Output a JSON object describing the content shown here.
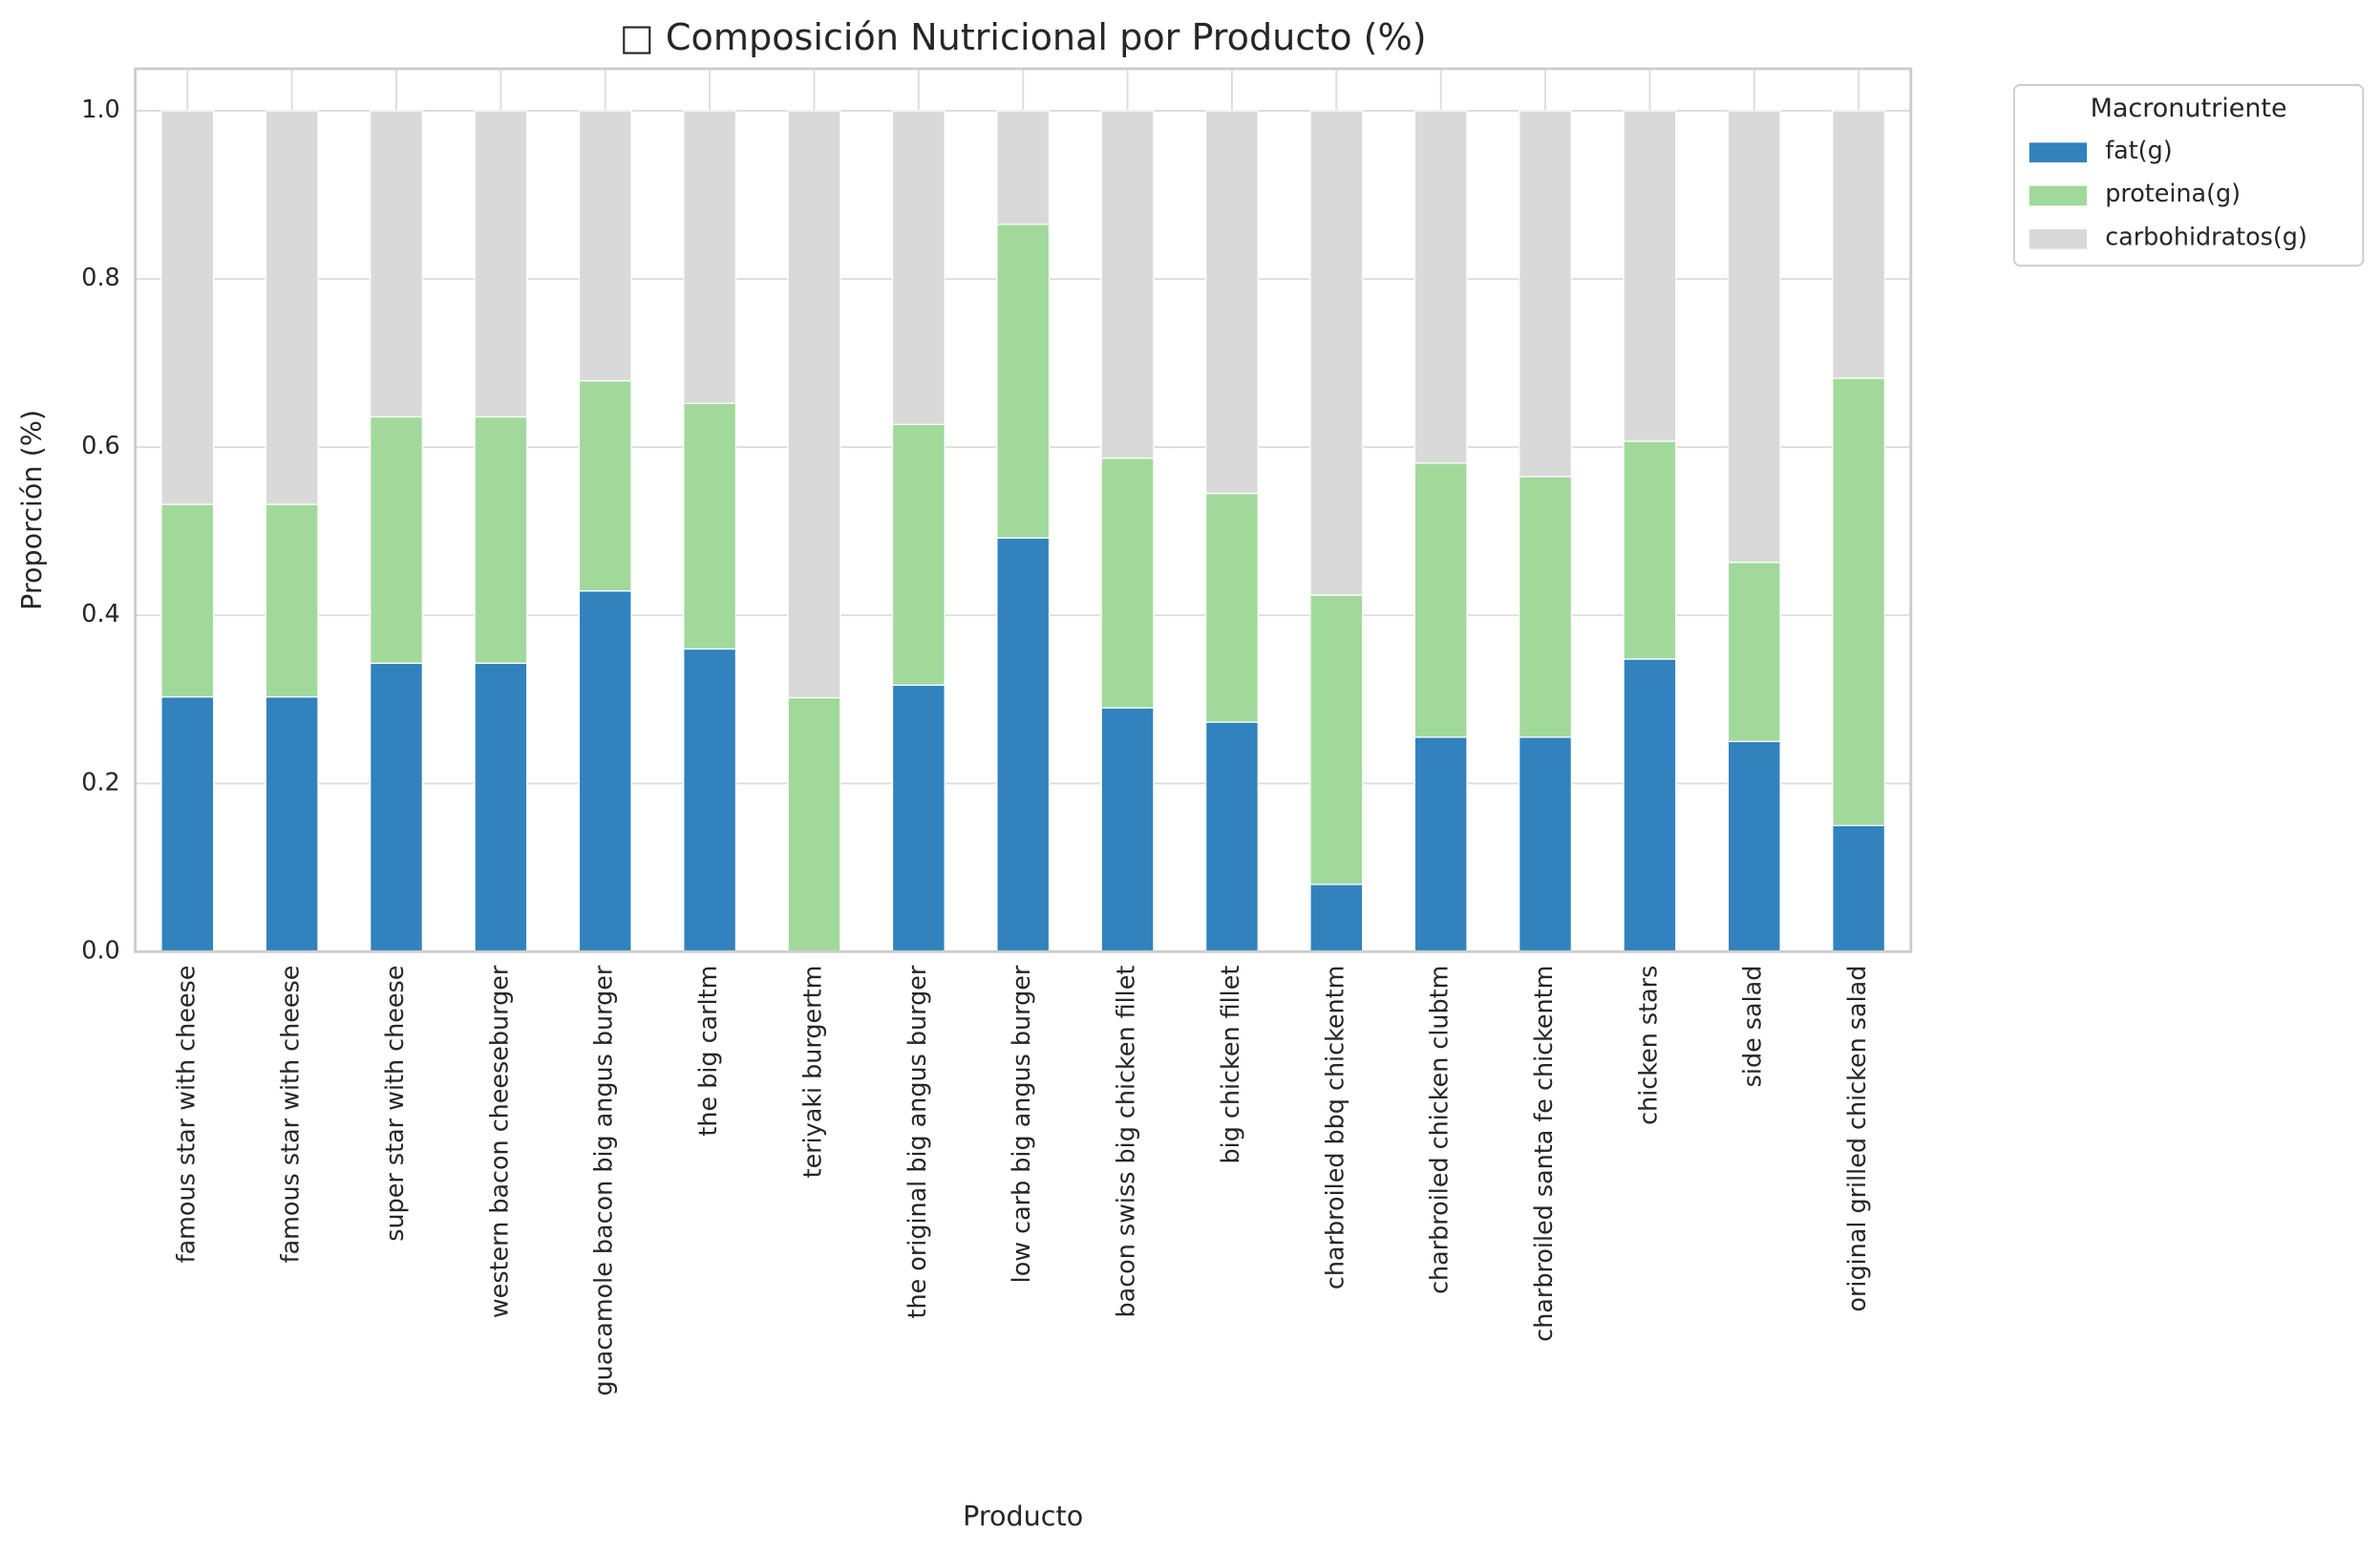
{
  "chart_data": {
    "type": "stacked_bar",
    "title": "□ Composición Nutricional por Producto (%)",
    "x_label": "Producto",
    "y_label": "Proporción (%)",
    "categories": [
      "famous star with cheese",
      "famous star with cheese",
      "super star with cheese",
      "western bacon cheeseburger",
      "guacamole bacon big angus burger",
      "the big carltm",
      "teriyaki burgertm",
      "the original big angus burger",
      "low carb big angus burger",
      "bacon swiss big chicken fillet",
      "big chicken fillet",
      "charbroiled bbq chickentm",
      "charbroiled chicken clubtm",
      "charbroiled santa fe chickentm",
      "chicken stars",
      "side salad",
      "original grilled chicken salad"
    ],
    "series": [
      {
        "name": "fat(g)",
        "color": "#3182bd",
        "values": [
          0.303,
          0.303,
          0.343,
          0.343,
          0.429,
          0.36,
          0,
          0.317,
          0.492,
          0.29,
          0.273,
          0.08,
          0.255,
          0.255,
          0.348,
          0.25,
          0.15
        ]
      },
      {
        "name": "proteina(g)",
        "color": "#a1d99b",
        "values": [
          0.229,
          0.229,
          0.293,
          0.293,
          0.25,
          0.292,
          0.302,
          0.31,
          0.373,
          0.297,
          0.272,
          0.344,
          0.326,
          0.31,
          0.259,
          0.213,
          0.532
        ]
      },
      {
        "name": "carbohidratos(g)",
        "color": "#d9d9d9",
        "values": [
          0.468,
          0.468,
          0.364,
          0.364,
          0.321,
          0.348,
          0.698,
          0.373,
          0.135,
          0.413,
          0.455,
          0.576,
          0.419,
          0.435,
          0.393,
          0.537,
          0.318
        ]
      }
    ],
    "ylim": [
      0,
      1.05
    ],
    "yticks": [
      {
        "value": 0,
        "label": "0.0"
      },
      0.2,
      0.4,
      0.6,
      0.8,
      {
        "value": 1,
        "label": "1.0"
      }
    ],
    "grid": true,
    "legend_title": "Macronutriente",
    "legend_position": "outside-upper-right"
  }
}
